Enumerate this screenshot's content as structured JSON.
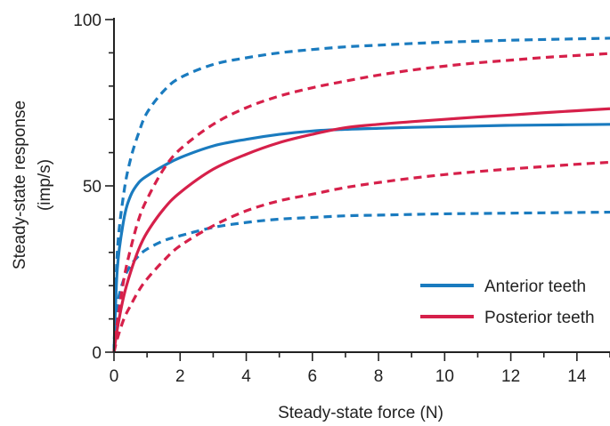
{
  "chart_data": {
    "type": "line",
    "xlabel": "Steady-state force (N)",
    "ylabel_line1": "Steady-state response",
    "ylabel_line2": "(imp/s)",
    "xlim": [
      0,
      15
    ],
    "ylim": [
      0,
      100
    ],
    "x_ticks": [
      0,
      2,
      4,
      6,
      8,
      10,
      12,
      14
    ],
    "y_ticks": [
      0,
      50,
      100
    ],
    "legend_position": "bottom-right",
    "grid": false,
    "colors": {
      "anterior": "#1a7bbf",
      "posterior": "#d6204a",
      "axis": "#222222"
    },
    "legend": [
      {
        "label": "Anterior teeth",
        "color": "#1a7bbf"
      },
      {
        "label": "Posterior teeth",
        "color": "#d6204a"
      }
    ],
    "x": [
      0,
      0.1,
      0.3,
      0.5,
      0.75,
      1,
      1.5,
      2,
      3,
      4,
      5,
      6,
      7,
      8,
      9,
      10,
      11,
      12,
      13,
      14,
      15
    ],
    "series": [
      {
        "group": "anterior",
        "style": "solid",
        "values": [
          0,
          25,
          40,
          47,
          51,
          53,
          56,
          58.5,
          62,
          64,
          65.5,
          66.5,
          67,
          67.3,
          67.6,
          67.8,
          68,
          68.2,
          68.3,
          68.4,
          68.5
        ]
      },
      {
        "group": "anterior",
        "style": "dashed",
        "values": [
          0,
          30,
          48,
          58,
          66,
          72,
          78.5,
          82.5,
          86.5,
          88.5,
          90,
          91,
          91.8,
          92.3,
          92.8,
          93.2,
          93.5,
          93.8,
          94,
          94.2,
          94.4
        ]
      },
      {
        "group": "anterior",
        "style": "dashed",
        "values": [
          0,
          14,
          22,
          26,
          29,
          31,
          33.5,
          35,
          37.5,
          39,
          40,
          40.5,
          41,
          41.2,
          41.4,
          41.6,
          41.7,
          41.8,
          41.9,
          42,
          42.1
        ]
      },
      {
        "group": "posterior",
        "style": "solid",
        "values": [
          0,
          7,
          17,
          24,
          31,
          36,
          43,
          48,
          55,
          59.5,
          63,
          65.5,
          67.5,
          68.5,
          69.3,
          70,
          70.7,
          71.3,
          72,
          72.6,
          73.2
        ]
      },
      {
        "group": "posterior",
        "style": "dashed",
        "values": [
          0,
          9,
          22,
          31,
          40,
          46,
          55,
          61,
          68.5,
          73.5,
          77,
          79.5,
          81.5,
          83.3,
          84.8,
          86,
          87,
          87.8,
          88.6,
          89.2,
          89.8
        ]
      },
      {
        "group": "posterior",
        "style": "dashed",
        "values": [
          0,
          4,
          10,
          14,
          18.5,
          22,
          27.5,
          32,
          38,
          42.5,
          45.5,
          47.5,
          49.5,
          51,
          52.3,
          53.4,
          54.3,
          55.1,
          55.8,
          56.5,
          57.1
        ]
      }
    ]
  }
}
